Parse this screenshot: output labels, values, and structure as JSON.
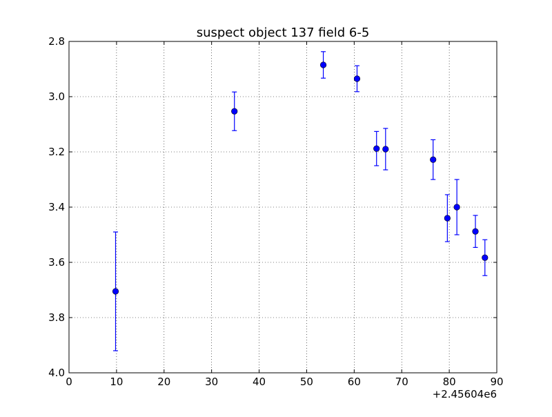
{
  "chart_data": {
    "type": "scatter",
    "title": "suspect object 137 field 6-5",
    "xlabel": "",
    "ylabel": "",
    "x_offset_label": "+2.45604e6",
    "xlim": [
      0,
      90
    ],
    "ylim": [
      2.8,
      4.0
    ],
    "y_inverted": true,
    "grid": true,
    "x_ticks": [
      0,
      10,
      20,
      30,
      40,
      50,
      60,
      70,
      80,
      90
    ],
    "x_tick_labels": [
      "0",
      "10",
      "20",
      "30",
      "40",
      "50",
      "60",
      "70",
      "80",
      "90"
    ],
    "y_ticks": [
      2.8,
      3.0,
      3.2,
      3.4,
      3.6,
      3.8,
      4.0
    ],
    "y_tick_labels": [
      "2.8",
      "3.0",
      "3.2",
      "3.4",
      "3.6",
      "3.8",
      "4.0"
    ],
    "series": [
      {
        "color": "#0000ff",
        "marker": "circle",
        "points": [
          {
            "x": 9.8,
            "y": 3.705,
            "yerr": 0.215
          },
          {
            "x": 34.8,
            "y": 3.053,
            "yerr": 0.07
          },
          {
            "x": 53.5,
            "y": 2.885,
            "yerr": 0.048
          },
          {
            "x": 60.6,
            "y": 2.935,
            "yerr": 0.047
          },
          {
            "x": 64.7,
            "y": 3.188,
            "yerr": 0.062
          },
          {
            "x": 66.6,
            "y": 3.19,
            "yerr": 0.075
          },
          {
            "x": 76.6,
            "y": 3.228,
            "yerr": 0.072
          },
          {
            "x": 79.6,
            "y": 3.44,
            "yerr": 0.085
          },
          {
            "x": 81.6,
            "y": 3.4,
            "yerr": 0.1
          },
          {
            "x": 85.5,
            "y": 3.488,
            "yerr": 0.058
          },
          {
            "x": 87.5,
            "y": 3.583,
            "yerr": 0.065
          }
        ]
      }
    ]
  }
}
